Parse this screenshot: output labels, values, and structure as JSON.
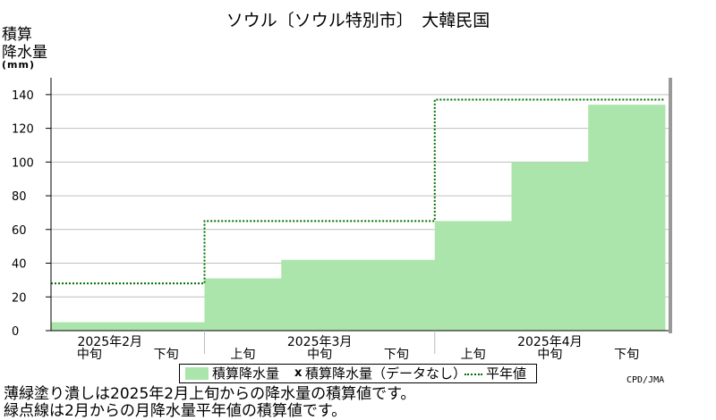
{
  "chart_data": {
    "type": "bar",
    "title": "ソウル〔ソウル特別市〕　大韓民国",
    "ylabel_lines": [
      "積算",
      "降水量"
    ],
    "yunit": "(mm)",
    "ylim": [
      0,
      150
    ],
    "yticks": [
      0,
      20,
      40,
      60,
      80,
      100,
      120,
      140
    ],
    "months": [
      {
        "label": "2025年2月",
        "dekads": [
          "中旬",
          "下旬"
        ]
      },
      {
        "label": "2025年3月",
        "dekads": [
          "上旬",
          "中旬",
          "下旬"
        ]
      },
      {
        "label": "2025年4月",
        "dekads": [
          "上旬",
          "中旬",
          "下旬"
        ]
      }
    ],
    "categories": [
      "2025年2月中旬",
      "2025年2月下旬",
      "2025年3月上旬",
      "2025年3月中旬",
      "2025年3月下旬",
      "2025年4月上旬",
      "2025年4月中旬",
      "2025年4月下旬"
    ],
    "series": [
      {
        "name": "積算降水量",
        "style": "filled-step",
        "color": "#ace5ac",
        "values": [
          5,
          5,
          31,
          42,
          42,
          65,
          100,
          134
        ]
      },
      {
        "name": "平年値",
        "style": "dotted-step",
        "color": "#007000",
        "values": [
          28,
          28,
          65,
          65,
          65,
          137,
          137,
          137
        ]
      }
    ],
    "grid": true,
    "legend": {
      "position": "bottom-center",
      "filled_label": "積算降水量",
      "missing_marker": "x",
      "missing_label": "積算降水量（データなし）",
      "normal_label": "平年値"
    }
  },
  "credit": "CPD/JMA",
  "notes": [
    "薄緑塗り潰しは2025年2月上旬からの降水量の積算値です。",
    "緑点線は2月からの月降水量平年値の積算値です。"
  ]
}
